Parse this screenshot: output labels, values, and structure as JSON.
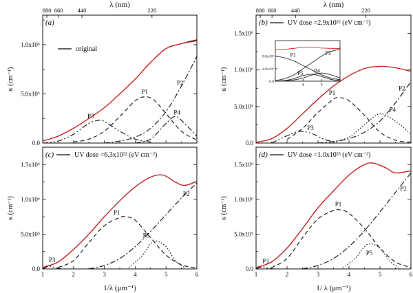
{
  "chart_data": [
    {
      "panel_label": "(a)",
      "type": "line",
      "top_axis": {
        "label": "λ (nm)",
        "ticks": [
          {
            "x": 1.136,
            "label": "880"
          },
          {
            "x": 1.515,
            "label": "660"
          },
          {
            "x": 2.273,
            "label": "440"
          },
          {
            "x": 4.545,
            "label": "220"
          }
        ]
      },
      "xlabel": "",
      "ylabel": "κ (cm⁻¹)",
      "xlim": [
        1,
        6
      ],
      "ylim": [
        0,
        1.3
      ],
      "y_ticks": [
        {
          "v": 0,
          "label": "0.0"
        },
        {
          "v": 0.5,
          "label": "5.0x10⁵"
        },
        {
          "v": 1.0,
          "label": "1.0x10⁶"
        }
      ],
      "legend": "original",
      "series": [
        {
          "name": "original",
          "style": "solid-black",
          "x": [
            1.0,
            1.5,
            2.0,
            2.5,
            3.0,
            3.5,
            4.0,
            4.5,
            5.0,
            5.5,
            6.0
          ],
          "y": [
            0.02,
            0.07,
            0.15,
            0.25,
            0.36,
            0.5,
            0.65,
            0.82,
            0.96,
            1.01,
            1.05
          ]
        },
        {
          "name": "fit",
          "style": "solid-red",
          "x": [
            1.0,
            1.5,
            2.0,
            2.5,
            3.0,
            3.5,
            4.0,
            4.5,
            5.0,
            5.5,
            6.0
          ],
          "y": [
            0.02,
            0.07,
            0.15,
            0.25,
            0.36,
            0.5,
            0.65,
            0.82,
            0.96,
            1.01,
            1.04
          ]
        },
        {
          "name": "P1",
          "style": "dash",
          "x": [
            2.0,
            2.5,
            3.0,
            3.5,
            4.0,
            4.3,
            4.6,
            5.0,
            5.5,
            6.0
          ],
          "y": [
            0.01,
            0.04,
            0.12,
            0.27,
            0.43,
            0.47,
            0.44,
            0.3,
            0.12,
            0.03
          ]
        },
        {
          "name": "P2",
          "style": "dashdot",
          "x": [
            3.0,
            3.5,
            4.0,
            4.5,
            5.0,
            5.5,
            6.0
          ],
          "y": [
            0.0,
            0.02,
            0.06,
            0.15,
            0.32,
            0.58,
            0.88
          ]
        },
        {
          "name": "P3",
          "style": "dashdotdot",
          "x": [
            1.0,
            1.5,
            2.0,
            2.5,
            2.8,
            3.0,
            3.5,
            4.0,
            4.5
          ],
          "y": [
            0.0,
            0.02,
            0.09,
            0.2,
            0.23,
            0.22,
            0.12,
            0.04,
            0.01
          ]
        },
        {
          "name": "P4",
          "style": "dashdot",
          "x": [
            4.0,
            4.5,
            5.0,
            5.3,
            5.6,
            6.0
          ],
          "y": [
            0.0,
            0.04,
            0.2,
            0.27,
            0.2,
            0.07
          ]
        }
      ],
      "peak_labels": [
        {
          "text": "P1",
          "x": 4.2,
          "y": 0.5
        },
        {
          "text": "P2",
          "x": 5.35,
          "y": 0.59
        },
        {
          "text": "P3",
          "x": 2.45,
          "y": 0.25
        },
        {
          "text": "P4",
          "x": 5.25,
          "y": 0.29
        }
      ]
    },
    {
      "panel_label": "(b)",
      "type": "line",
      "top_axis": {
        "label": "λ (nm)",
        "ticks": [
          {
            "x": 1.136,
            "label": "880"
          },
          {
            "x": 1.515,
            "label": "660"
          },
          {
            "x": 2.273,
            "label": "440"
          },
          {
            "x": 4.545,
            "label": "220"
          }
        ]
      },
      "xlabel": "",
      "ylabel": "κ (cm⁻¹)",
      "xlim": [
        1,
        6
      ],
      "ylim": [
        0,
        1.75
      ],
      "y_ticks": [
        {
          "v": 0,
          "label": "0.0"
        },
        {
          "v": 0.5,
          "label": "5.0x10⁵"
        },
        {
          "v": 1.0,
          "label": "1.0x10⁶"
        },
        {
          "v": 1.5,
          "label": "1.5x10⁶"
        }
      ],
      "legend": "UV dose =2.9x10²²  (eV cm⁻²)",
      "series": [
        {
          "name": "original",
          "style": "solid-black",
          "x": [
            1.0,
            1.5,
            2.0,
            2.5,
            3.0,
            3.5,
            4.0,
            4.5,
            5.0,
            5.5,
            6.0
          ],
          "y": [
            0.01,
            0.06,
            0.2,
            0.4,
            0.6,
            0.78,
            0.92,
            1.02,
            1.05,
            1.03,
            0.98
          ]
        },
        {
          "name": "fit",
          "style": "solid-red",
          "x": [
            1.0,
            1.5,
            2.0,
            2.5,
            3.0,
            3.5,
            4.0,
            4.5,
            5.0,
            5.5,
            6.0
          ],
          "y": [
            0.01,
            0.06,
            0.2,
            0.4,
            0.6,
            0.78,
            0.92,
            1.02,
            1.05,
            1.03,
            0.98
          ]
        },
        {
          "name": "P1",
          "style": "dash",
          "x": [
            2.0,
            2.5,
            3.0,
            3.5,
            3.7,
            4.0,
            4.5,
            5.0,
            5.5,
            6.0
          ],
          "y": [
            0.05,
            0.2,
            0.42,
            0.6,
            0.62,
            0.58,
            0.38,
            0.15,
            0.04,
            0.01
          ]
        },
        {
          "name": "P2",
          "style": "dashdot",
          "x": [
            3.0,
            3.5,
            4.0,
            4.5,
            5.0,
            5.5,
            6.0
          ],
          "y": [
            0.0,
            0.02,
            0.06,
            0.15,
            0.3,
            0.55,
            0.84
          ]
        },
        {
          "name": "P3",
          "style": "dashdotdot",
          "x": [
            1.5,
            2.0,
            2.4,
            2.8,
            3.2,
            3.6
          ],
          "y": [
            0.0,
            0.1,
            0.16,
            0.13,
            0.05,
            0.01
          ]
        },
        {
          "name": "P4",
          "style": "dot",
          "x": [
            3.5,
            4.0,
            4.5,
            5.0,
            5.5,
            6.0
          ],
          "y": [
            0.02,
            0.08,
            0.25,
            0.4,
            0.3,
            0.12
          ]
        }
      ],
      "peak_labels": [
        {
          "text": "P1",
          "x": 3.35,
          "y": 0.66
        },
        {
          "text": "P2",
          "x": 5.6,
          "y": 0.72
        },
        {
          "text": "P3",
          "x": 2.65,
          "y": 0.18
        },
        {
          "text": "P4",
          "x": 5.3,
          "y": 0.43
        }
      ],
      "inset": {
        "xlim": [
          2.5,
          6.0
        ],
        "ylim": [
          0,
          1.3
        ],
        "x_ticks": [
          {
            "v": 4,
            "label": "4"
          },
          {
            "v": 5,
            "label": "5"
          }
        ],
        "y_ticks": [
          {
            "v": 0,
            "label": "0.0"
          },
          {
            "v": 0.4,
            "label": "4.0x10⁵"
          },
          {
            "v": 0.8,
            "label": "8.0x10⁵"
          }
        ],
        "series": [
          {
            "name": "fit",
            "style": "solid-red",
            "x": [
              2.5,
              3.0,
              3.5,
              4.0,
              4.5,
              5.0,
              5.5,
              6.0
            ],
            "y": [
              1.0,
              1.02,
              1.05,
              1.08,
              1.08,
              1.06,
              1.05,
              1.05
            ]
          },
          {
            "name": "P1",
            "style": "solid",
            "x": [
              2.5,
              3.0,
              3.5,
              4.0,
              4.5,
              5.0,
              5.5,
              6.0
            ],
            "y": [
              0.8,
              0.75,
              0.65,
              0.5,
              0.35,
              0.2,
              0.1,
              0.05
            ]
          },
          {
            "name": "P2",
            "style": "solid",
            "x": [
              2.5,
              3.0,
              3.5,
              4.0,
              4.5,
              5.0,
              5.5,
              6.0
            ],
            "y": [
              0.02,
              0.08,
              0.2,
              0.4,
              0.6,
              0.8,
              0.95,
              1.02
            ]
          },
          {
            "name": "P5",
            "style": "solid",
            "x": [
              2.5,
              3.0,
              3.5,
              4.0,
              4.5,
              5.0,
              5.5,
              6.0
            ],
            "y": [
              0.0,
              0.02,
              0.08,
              0.18,
              0.22,
              0.15,
              0.06,
              0.01
            ]
          },
          {
            "name": "P4",
            "style": "solid",
            "x": [
              2.5,
              3.0,
              3.5,
              4.0,
              4.5,
              5.0,
              5.5,
              6.0
            ],
            "y": [
              0.0,
              0.01,
              0.04,
              0.1,
              0.2,
              0.26,
              0.2,
              0.1
            ]
          }
        ],
        "labels": [
          {
            "text": "P1",
            "x": 3.3,
            "y": 0.78
          },
          {
            "text": "P2",
            "x": 5.2,
            "y": 0.85
          },
          {
            "text": "P5",
            "x": 3.7,
            "y": 0.2
          },
          {
            "text": "P4",
            "x": 4.6,
            "y": 0.28
          }
        ]
      }
    },
    {
      "panel_label": "(c)",
      "type": "line",
      "xlabel": "1/λ (μm⁻¹)",
      "ylabel": "κ (cm⁻¹)",
      "xlim": [
        1,
        6
      ],
      "ylim": [
        0,
        1.75
      ],
      "x_ticks": [
        {
          "v": 1,
          "label": "1"
        },
        {
          "v": 2,
          "label": "2"
        },
        {
          "v": 3,
          "label": "3"
        },
        {
          "v": 4,
          "label": "4"
        },
        {
          "v": 5,
          "label": "5"
        },
        {
          "v": 6,
          "label": "6"
        }
      ],
      "y_ticks": [
        {
          "v": 0,
          "label": "0.0"
        },
        {
          "v": 0.5,
          "label": "5.0x10⁵"
        },
        {
          "v": 1.0,
          "label": "1.0x10⁶"
        },
        {
          "v": 1.5,
          "label": "1.5x10⁶"
        }
      ],
      "legend": "UV dose =6.3x10²²  (eV cm⁻²)",
      "series": [
        {
          "name": "original",
          "style": "solid-black",
          "x": [
            1.0,
            1.5,
            2.0,
            2.5,
            3.0,
            3.5,
            4.0,
            4.5,
            4.9,
            5.3,
            5.6,
            6.0
          ],
          "y": [
            0.02,
            0.1,
            0.28,
            0.5,
            0.75,
            0.98,
            1.18,
            1.32,
            1.35,
            1.25,
            1.2,
            1.26
          ]
        },
        {
          "name": "fit",
          "style": "solid-red",
          "x": [
            1.0,
            1.5,
            2.0,
            2.5,
            3.0,
            3.5,
            4.0,
            4.5,
            4.9,
            5.3,
            5.6,
            6.0
          ],
          "y": [
            0.02,
            0.1,
            0.28,
            0.5,
            0.75,
            0.98,
            1.18,
            1.32,
            1.35,
            1.25,
            1.2,
            1.26
          ]
        },
        {
          "name": "P1",
          "style": "dash",
          "x": [
            1.5,
            2.0,
            2.5,
            3.0,
            3.5,
            3.7,
            4.0,
            4.5,
            5.0,
            5.5,
            6.0
          ],
          "y": [
            0.02,
            0.12,
            0.38,
            0.62,
            0.74,
            0.75,
            0.7,
            0.45,
            0.2,
            0.06,
            0.01
          ]
        },
        {
          "name": "P2",
          "style": "dashdot",
          "x": [
            2.5,
            3.0,
            3.5,
            4.0,
            4.5,
            5.0,
            5.5,
            6.0
          ],
          "y": [
            0.0,
            0.05,
            0.15,
            0.32,
            0.54,
            0.78,
            1.02,
            1.24
          ]
        },
        {
          "name": "P3",
          "style": "dashdotdot",
          "x": [
            1.0,
            1.2,
            1.4,
            1.6
          ],
          "y": [
            0.0,
            0.04,
            0.02,
            0.0
          ]
        },
        {
          "name": "P5",
          "style": "dot",
          "x": [
            3.8,
            4.2,
            4.5,
            4.7,
            5.0,
            5.3,
            5.6
          ],
          "y": [
            0.02,
            0.18,
            0.36,
            0.4,
            0.32,
            0.12,
            0.02
          ]
        }
      ],
      "peak_labels": [
        {
          "text": "P1",
          "x": 3.3,
          "y": 0.78
        },
        {
          "text": "P2",
          "x": 5.55,
          "y": 1.05
        },
        {
          "text": "P3",
          "x": 1.2,
          "y": 0.1
        },
        {
          "text": "P5",
          "x": 4.25,
          "y": 0.45
        }
      ]
    },
    {
      "panel_label": "(d)",
      "type": "line",
      "xlabel": "1/ λ (μm⁻¹)",
      "ylabel": "κ (cm⁻¹)",
      "xlim": [
        1,
        6
      ],
      "ylim": [
        0,
        1.75
      ],
      "x_ticks": [
        {
          "v": 1,
          "label": "1"
        },
        {
          "v": 2,
          "label": "2"
        },
        {
          "v": 3,
          "label": "3"
        },
        {
          "v": 4,
          "label": "4"
        },
        {
          "v": 5,
          "label": "5"
        },
        {
          "v": 6,
          "label": "6"
        }
      ],
      "y_ticks": [
        {
          "v": 0,
          "label": "0.0"
        },
        {
          "v": 0.5,
          "label": "5.0x10⁵"
        },
        {
          "v": 1.0,
          "label": "1.0x10⁶"
        },
        {
          "v": 1.5,
          "label": "1.5x10⁶"
        }
      ],
      "legend": "UV dose =1.0x10²³  (eV cm⁻²)",
      "series": [
        {
          "name": "original",
          "style": "solid-black",
          "x": [
            1.0,
            1.5,
            2.0,
            2.5,
            3.0,
            3.5,
            4.0,
            4.5,
            4.8,
            5.2,
            5.5,
            6.0
          ],
          "y": [
            0.02,
            0.1,
            0.3,
            0.58,
            0.88,
            1.12,
            1.35,
            1.5,
            1.52,
            1.45,
            1.38,
            1.41
          ]
        },
        {
          "name": "fit",
          "style": "solid-red",
          "x": [
            1.0,
            1.5,
            2.0,
            2.5,
            3.0,
            3.5,
            4.0,
            4.5,
            4.8,
            5.2,
            5.5,
            6.0
          ],
          "y": [
            0.02,
            0.1,
            0.3,
            0.58,
            0.88,
            1.12,
            1.35,
            1.5,
            1.52,
            1.45,
            1.38,
            1.41
          ]
        },
        {
          "name": "P1",
          "style": "dash",
          "x": [
            1.5,
            2.0,
            2.5,
            3.0,
            3.5,
            3.7,
            4.0,
            4.5,
            5.0,
            5.5,
            6.0
          ],
          "y": [
            0.02,
            0.15,
            0.45,
            0.72,
            0.84,
            0.85,
            0.8,
            0.58,
            0.3,
            0.1,
            0.02
          ]
        },
        {
          "name": "P2",
          "style": "dashdot",
          "x": [
            2.5,
            3.0,
            3.5,
            4.0,
            4.5,
            5.0,
            5.5,
            6.0
          ],
          "y": [
            0.0,
            0.05,
            0.15,
            0.32,
            0.55,
            0.82,
            1.1,
            1.38
          ]
        },
        {
          "name": "P3",
          "style": "dashdotdot",
          "x": [
            1.0,
            1.2,
            1.4,
            1.6
          ],
          "y": [
            0.0,
            0.03,
            0.01,
            0.0
          ]
        },
        {
          "name": "P5",
          "style": "dot",
          "x": [
            3.8,
            4.2,
            4.5,
            4.7,
            5.0,
            5.3,
            5.6
          ],
          "y": [
            0.02,
            0.15,
            0.32,
            0.36,
            0.3,
            0.12,
            0.02
          ]
        }
      ],
      "peak_labels": [
        {
          "text": "P1",
          "x": 3.55,
          "y": 0.9
        },
        {
          "text": "P2",
          "x": 5.65,
          "y": 1.12
        },
        {
          "text": "P3",
          "x": 1.2,
          "y": 0.08
        },
        {
          "text": "P5",
          "x": 4.55,
          "y": 0.2
        }
      ]
    }
  ]
}
